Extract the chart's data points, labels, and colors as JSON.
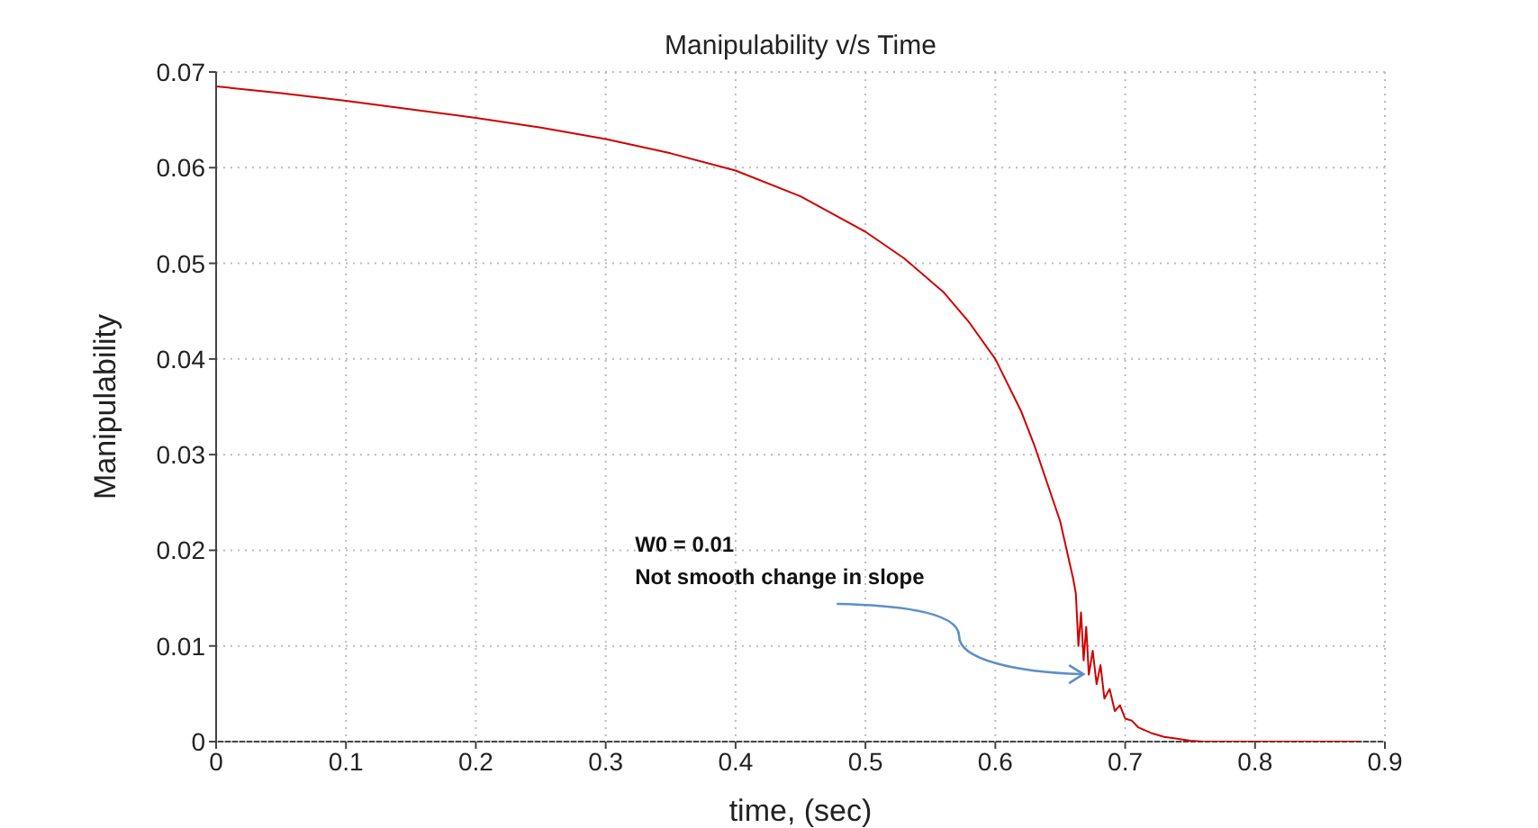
{
  "chart_data": {
    "type": "line",
    "title": "Manipulability v/s Time",
    "xlabel": "time, (sec)",
    "ylabel": "Manipulability",
    "x": [
      0,
      0.05,
      0.1,
      0.15,
      0.2,
      0.25,
      0.3,
      0.35,
      0.4,
      0.45,
      0.5,
      0.53,
      0.56,
      0.58,
      0.6,
      0.62,
      0.63,
      0.64,
      0.65,
      0.655,
      0.66,
      0.662,
      0.664,
      0.666,
      0.668,
      0.67,
      0.672,
      0.675,
      0.678,
      0.681,
      0.684,
      0.688,
      0.692,
      0.696,
      0.7,
      0.705,
      0.71,
      0.72,
      0.73,
      0.74,
      0.75,
      0.76,
      0.77,
      0.8,
      0.85,
      0.88
    ],
    "series": [
      {
        "color": "#d00000",
        "values": [
          0.0685,
          0.0678,
          0.067,
          0.0661,
          0.0652,
          0.0642,
          0.063,
          0.0615,
          0.0597,
          0.057,
          0.0533,
          0.0505,
          0.047,
          0.0438,
          0.04,
          0.0345,
          0.031,
          0.027,
          0.023,
          0.02,
          0.017,
          0.0155,
          0.01,
          0.0135,
          0.0085,
          0.012,
          0.007,
          0.0095,
          0.006,
          0.008,
          0.0045,
          0.0055,
          0.0032,
          0.0038,
          0.0024,
          0.0022,
          0.0015,
          0.0009,
          0.0005,
          0.0003,
          0.0001,
          0,
          0,
          0,
          0,
          0
        ]
      }
    ],
    "xlim": [
      0,
      0.9
    ],
    "xticks": [
      0,
      0.1,
      0.2,
      0.3,
      0.4,
      0.5,
      0.6,
      0.7,
      0.8,
      0.9
    ],
    "ylim": [
      0,
      0.07
    ],
    "yticks": [
      0,
      0.01,
      0.02,
      0.03,
      0.04,
      0.05,
      0.06,
      0.07
    ],
    "grid": true,
    "marker": "none",
    "line_style": "solid",
    "annotations": [
      {
        "text": "W0 = 0.01\nNot smooth change in slope",
        "x": 0.672,
        "y": 0.0063
      }
    ]
  }
}
